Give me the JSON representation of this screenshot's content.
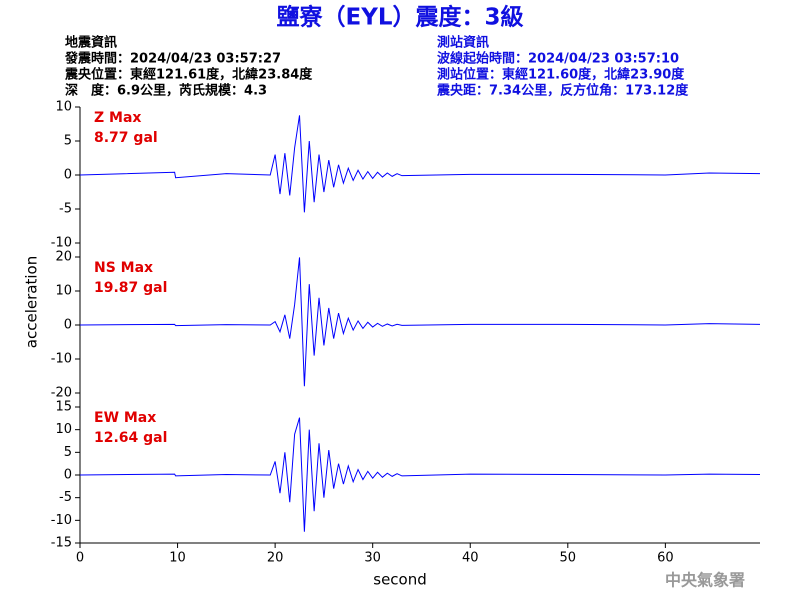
{
  "title": "鹽寮（EYL）震度：3級",
  "info_left": [
    "地震資訊",
    "發震時間：2024/04/23 03:57:27",
    "震央位置：東經121.61度，北緯23.84度",
    "深　度：6.9公里，芮氏規模：4.3"
  ],
  "info_right": [
    "測站資訊",
    "波線起始時間：2024/04/23 03:57:10",
    "測站位置：東經121.60度，北緯23.90度",
    "震央距：7.34公里，反方位角：173.12度"
  ],
  "ylabel": "acceleration",
  "xlabel": "second",
  "credit": "中央氣象署",
  "chart_data": [
    {
      "type": "line",
      "annotations": [
        "Z Max",
        "8.77 gal"
      ],
      "color": "#0000ff",
      "xlim": [
        0,
        69.7
      ],
      "ylim": [
        -10,
        10
      ],
      "yticks": [
        10,
        5,
        0,
        -5,
        -10
      ],
      "x": [
        0,
        9.7,
        9.8,
        15,
        19.5,
        20,
        20.5,
        21,
        21.5,
        22,
        22.5,
        23,
        23.5,
        24,
        24.5,
        25,
        25.5,
        26,
        26.5,
        27,
        27.5,
        28,
        28.5,
        29,
        29.5,
        30,
        30.5,
        31,
        31.5,
        32,
        32.5,
        33,
        40,
        50,
        60,
        64.5,
        69.7
      ],
      "values": [
        0,
        0.4,
        -0.4,
        0.2,
        0,
        3.0,
        -2.8,
        3.2,
        -3.0,
        4.0,
        8.77,
        -5.5,
        5.0,
        -4.0,
        3.0,
        -2.5,
        2.2,
        -1.8,
        1.5,
        -1.2,
        1.0,
        -0.8,
        0.7,
        -0.6,
        0.5,
        -0.5,
        0.4,
        -0.3,
        0.3,
        -0.2,
        0.2,
        -0.1,
        0.1,
        0.1,
        0,
        0.3,
        0.2
      ]
    },
    {
      "type": "line",
      "annotations": [
        "NS Max",
        "19.87 gal"
      ],
      "color": "#0000ff",
      "xlim": [
        0,
        69.7
      ],
      "ylim": [
        -20,
        20
      ],
      "yticks": [
        20,
        10,
        0,
        -10,
        -20
      ],
      "x": [
        0,
        9.7,
        9.8,
        15,
        19.5,
        20,
        20.5,
        21,
        21.5,
        22,
        22.5,
        23,
        23.5,
        24,
        24.5,
        25,
        25.5,
        26,
        26.5,
        27,
        27.5,
        28,
        28.5,
        29,
        29.5,
        30,
        30.5,
        31,
        31.5,
        32,
        32.5,
        33,
        40,
        50,
        60,
        64.5,
        69.7
      ],
      "values": [
        0,
        0.2,
        -0.2,
        0.1,
        0,
        1.0,
        -2.0,
        3.0,
        -4.0,
        6.0,
        19.87,
        -18.0,
        12.0,
        -9.0,
        8.0,
        -6.0,
        5.0,
        -4.0,
        3.5,
        -2.5,
        2.0,
        -1.5,
        1.2,
        -1.0,
        0.8,
        -0.6,
        0.5,
        -0.4,
        0.3,
        -0.3,
        0.2,
        -0.1,
        0.2,
        0.2,
        0,
        0.4,
        0.2
      ]
    },
    {
      "type": "line",
      "annotations": [
        "EW Max",
        "12.64 gal"
      ],
      "color": "#0000ff",
      "xlim": [
        0,
        69.7
      ],
      "ylim": [
        -15,
        15
      ],
      "yticks": [
        15,
        10,
        5,
        0,
        -5,
        -10,
        -15
      ],
      "xticks": [
        0,
        10,
        20,
        30,
        40,
        50,
        60
      ],
      "x": [
        0,
        9.7,
        9.8,
        15,
        19.5,
        20,
        20.5,
        21,
        21.5,
        22,
        22.5,
        23,
        23.5,
        24,
        24.5,
        25,
        25.5,
        26,
        26.5,
        27,
        27.5,
        28,
        28.5,
        29,
        29.5,
        30,
        30.5,
        31,
        31.5,
        32,
        32.5,
        33,
        40,
        50,
        60,
        64.5,
        69.7
      ],
      "values": [
        0,
        0.2,
        -0.2,
        0.1,
        0,
        3.0,
        -4.0,
        5.0,
        -6.0,
        9.0,
        12.64,
        -12.5,
        10.0,
        -8.0,
        7.0,
        -5.0,
        5.5,
        -3.0,
        2.5,
        -2.0,
        2.0,
        -1.5,
        1.2,
        -1.0,
        0.8,
        -0.7,
        0.6,
        -0.5,
        0.4,
        -0.3,
        0.3,
        -0.2,
        0.2,
        0.1,
        0,
        0.2,
        0.1
      ]
    }
  ]
}
